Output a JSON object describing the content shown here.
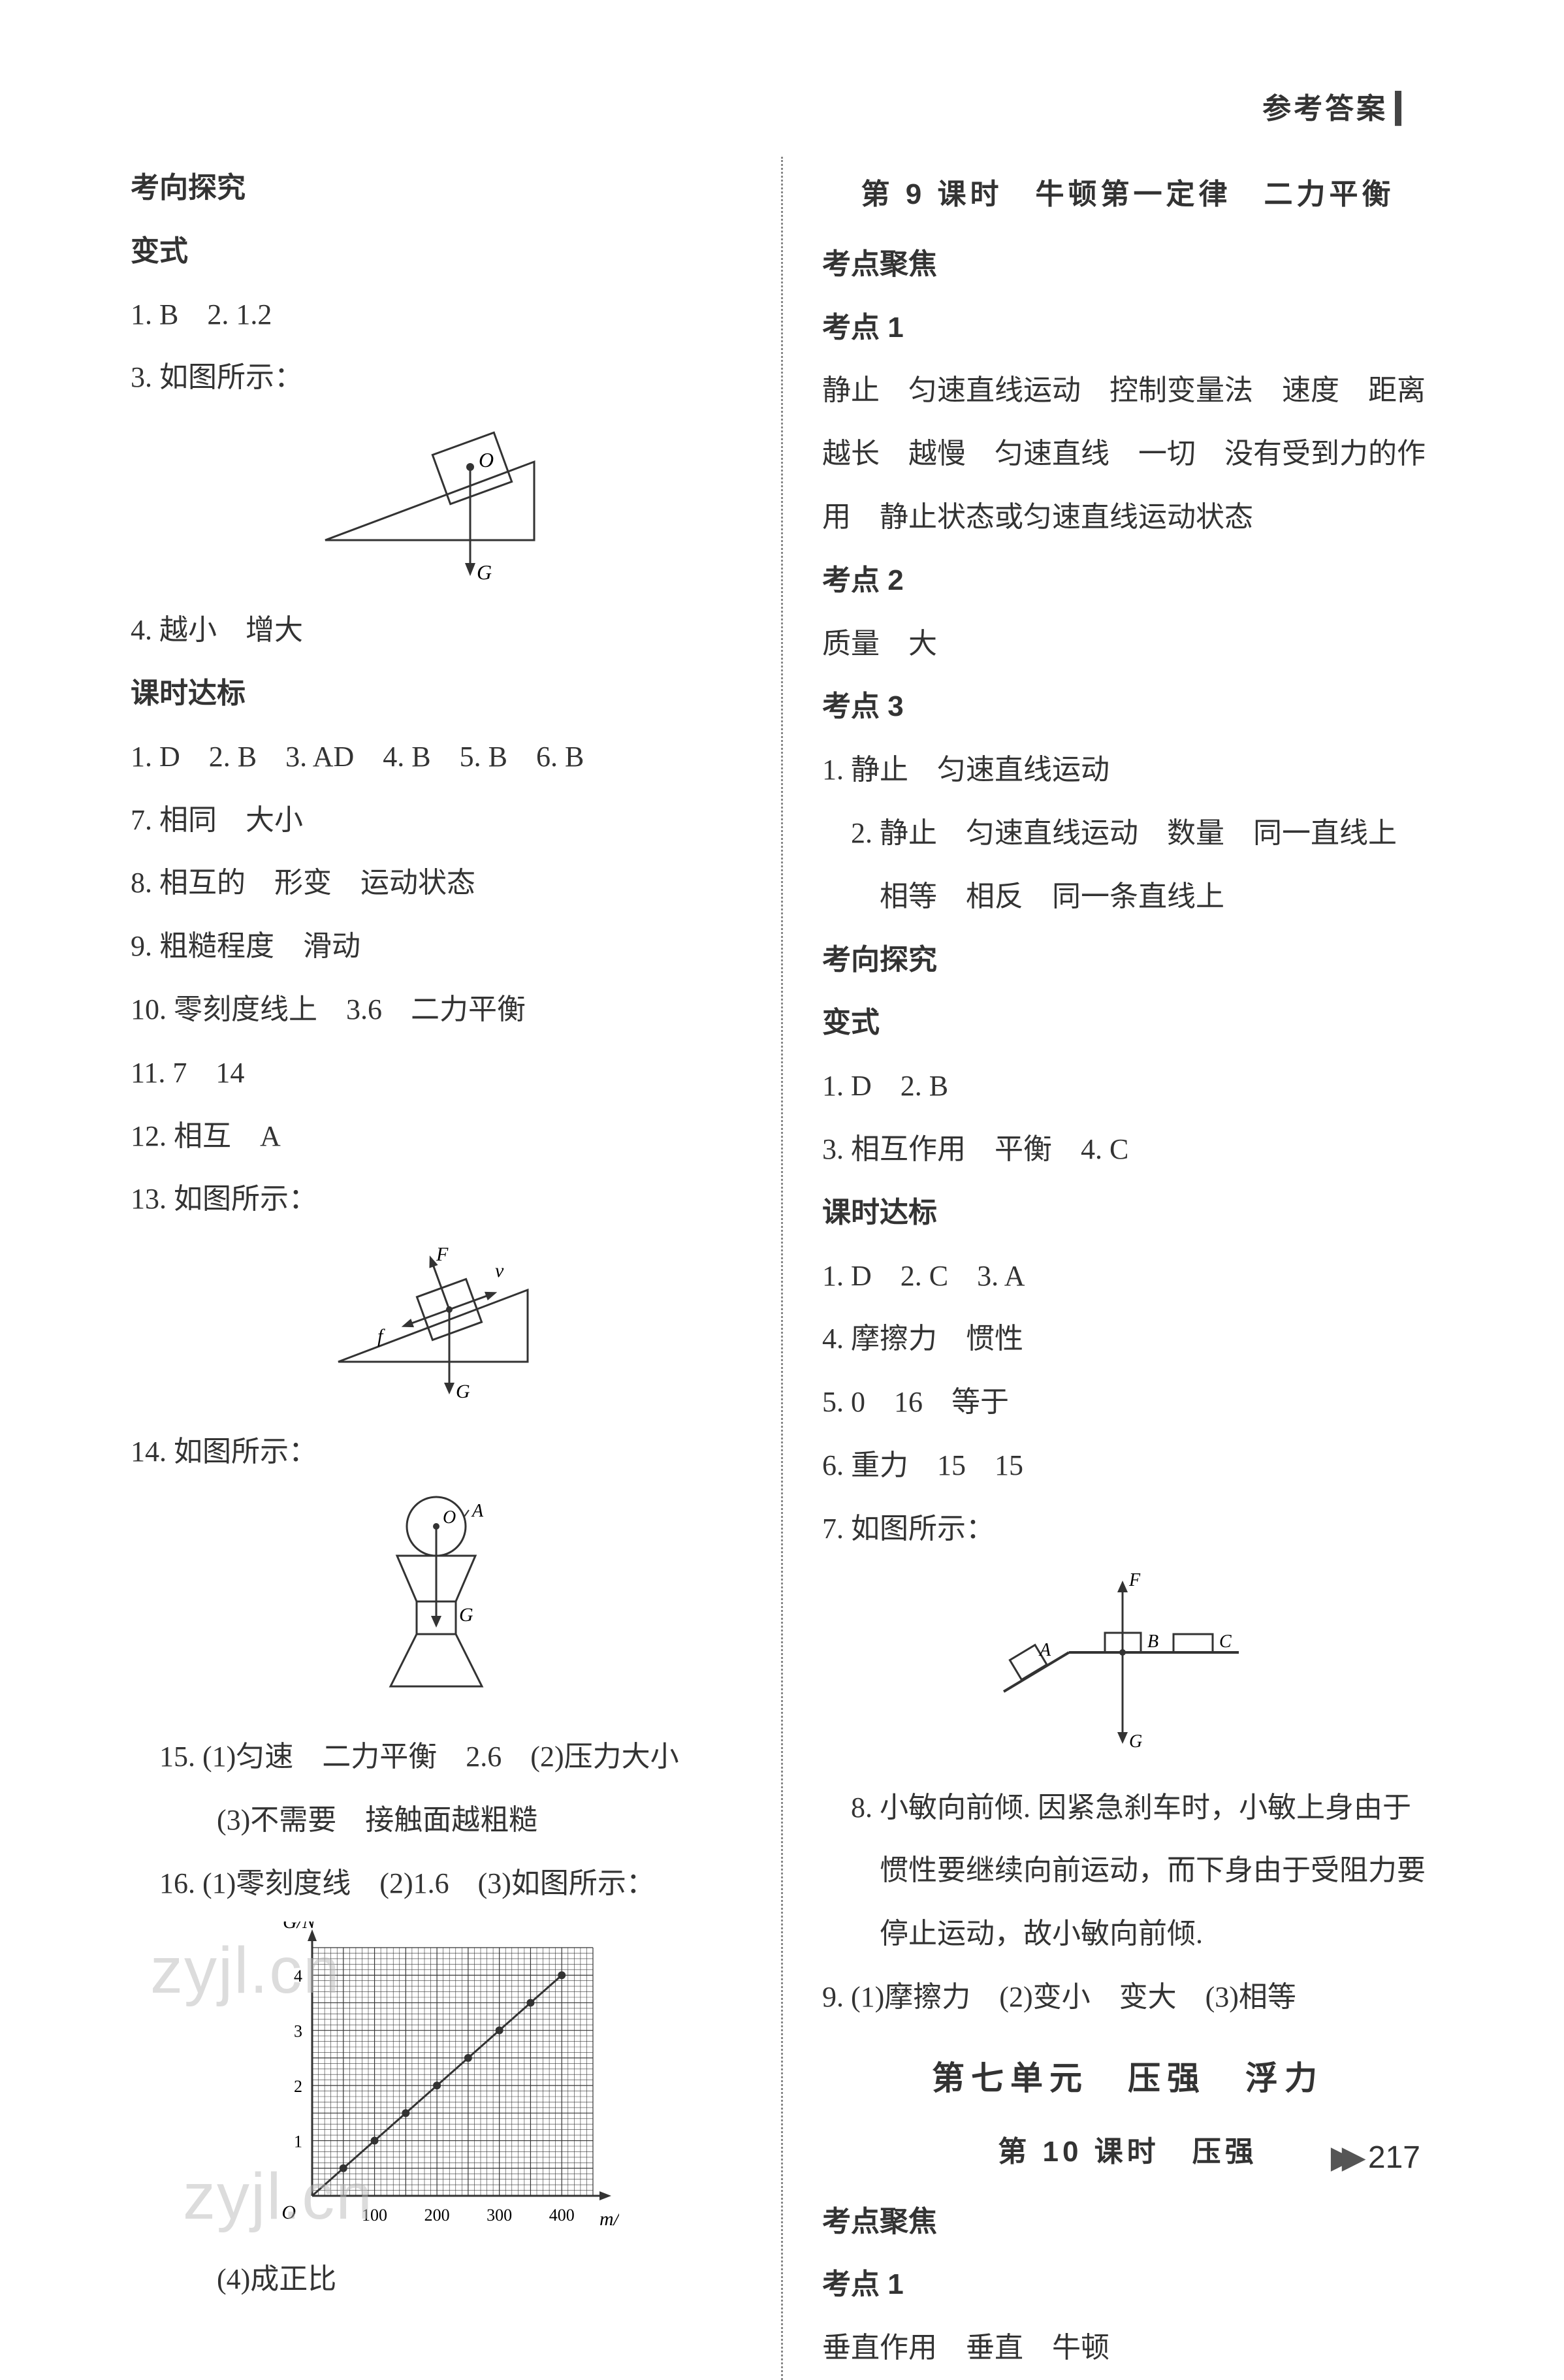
{
  "header": {
    "title": "参考答案"
  },
  "pageNumber": "217",
  "watermarks": {
    "w1": "zyjl.cn",
    "w2": "zyjl.cn"
  },
  "left": {
    "s1": "考向探究",
    "s2": "变式",
    "l1": "1. B　2. 1.2",
    "l2": "3. 如图所示：",
    "l3": "4. 越小　增大",
    "s3": "课时达标",
    "l4": "1. D　2. B　3. AD　4. B　5. B　6. B",
    "l5": "7. 相同　大小",
    "l6": "8. 相互的　形变　运动状态",
    "l7": "9. 粗糙程度　滑动",
    "l8": "10. 零刻度线上　3.6　二力平衡",
    "l9": "11. 7　14",
    "l10": "12. 相互　A",
    "l11": "13. 如图所示：",
    "l12": "14. 如图所示：",
    "l13": "15. (1)匀速　二力平衡　2.6　(2)压力大小",
    "l13b": "(3)不需要　接触面越粗糙",
    "l14": "16. (1)零刻度线　(2)1.6　(3)如图所示：",
    "l15": "(4)成正比",
    "fig3": {
      "labels": {
        "O": "O",
        "G": "G"
      },
      "stroke": "#333333"
    },
    "fig13": {
      "labels": {
        "F": "F",
        "v": "v",
        "f": "f",
        "G": "G"
      },
      "stroke": "#333333"
    },
    "fig14": {
      "labels": {
        "A": "A",
        "O": "O",
        "G": "G"
      },
      "stroke": "#333333"
    },
    "chart16": {
      "type": "line",
      "xLabel": "m/g",
      "yLabel": "G/N",
      "xlim": [
        0,
        450
      ],
      "ylim": [
        0,
        4.5
      ],
      "xticks": [
        0,
        100,
        200,
        300,
        400
      ],
      "yticks": [
        0,
        1,
        2,
        3,
        4
      ],
      "originLabel": "O",
      "grid_color": "#333333",
      "background_color": "#ffffff",
      "line_color": "#333333",
      "point_color": "#333333",
      "points_x": [
        50,
        100,
        150,
        200,
        250,
        300,
        350,
        400
      ],
      "points_y": [
        0.5,
        1.0,
        1.5,
        2.0,
        2.5,
        3.0,
        3.5,
        4.0
      ],
      "grid_minor": 10
    }
  },
  "right": {
    "title1": "第 9 课时　牛顿第一定律　二力平衡",
    "s1": "考点聚焦",
    "s2": "考点 1",
    "l1": "静止　匀速直线运动　控制变量法　速度　距离越长　越慢　匀速直线　一切　没有受到力的作用　静止状态或匀速直线运动状态",
    "s3": "考点 2",
    "l2": "质量　大",
    "s4": "考点 3",
    "l3": "1. 静止　匀速直线运动",
    "l4": "2. 静止　匀速直线运动　数量　同一直线上　相等　相反　同一条直线上",
    "s5": "考向探究",
    "s6": "变式",
    "l5": "1. D　2. B",
    "l6": "3. 相互作用　平衡　4. C",
    "s7": "课时达标",
    "l7": "1. D　2. C　3. A",
    "l8": "4. 摩擦力　惯性",
    "l9": "5. 0　16　等于",
    "l10": "6. 重力　15　15",
    "l11": "7. 如图所示：",
    "fig7": {
      "labels": {
        "A": "A",
        "B": "B",
        "C": "C",
        "F": "F",
        "G": "G"
      },
      "stroke": "#333333"
    },
    "l12": "8. 小敏向前倾. 因紧急刹车时，小敏上身由于惯性要继续向前运动，而下身由于受阻力要停止运动，故小敏向前倾.",
    "l13": "9. (1)摩擦力　(2)变小　变大　(3)相等",
    "unit": "第七单元　压强　浮力",
    "title2": "第 10 课时　压强",
    "s8": "考点聚焦",
    "s9": "考点 1",
    "l14": "垂直作用　垂直　牛顿"
  }
}
